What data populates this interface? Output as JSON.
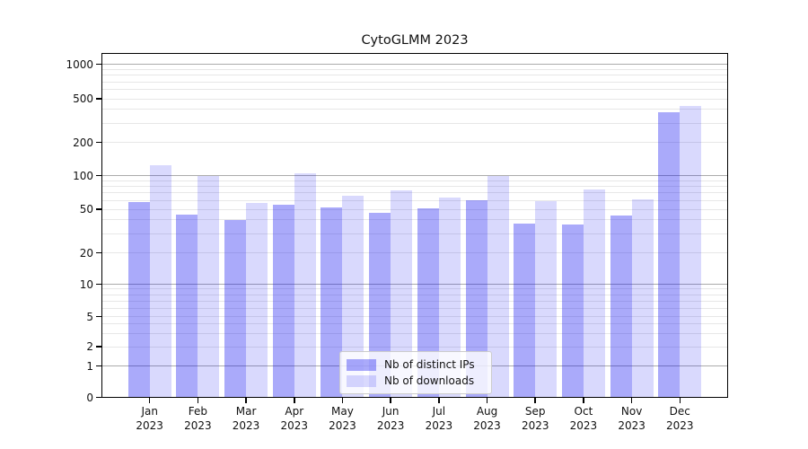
{
  "title": "CytoGLMM 2023",
  "legend": {
    "items": [
      {
        "label": "Nb of distinct IPs",
        "color": "rgba(0,0,240,0.335)"
      },
      {
        "label": "Nb of downloads",
        "color": "rgba(0,0,240,0.15)"
      }
    ]
  },
  "y_axis": {
    "scale": "symlog",
    "ticks": [
      {
        "value": 0,
        "label": "0"
      },
      {
        "value": 1,
        "label": "1"
      },
      {
        "value": 2,
        "label": "2"
      },
      {
        "value": 5,
        "label": "5"
      },
      {
        "value": 10,
        "label": "10"
      },
      {
        "value": 20,
        "label": "20"
      },
      {
        "value": 50,
        "label": "50"
      },
      {
        "value": 100,
        "label": "100"
      },
      {
        "value": 200,
        "label": "200"
      },
      {
        "value": 500,
        "label": "500"
      },
      {
        "value": 1000,
        "label": "1000"
      }
    ]
  },
  "x_axis": {
    "months": [
      "Jan",
      "Feb",
      "Mar",
      "Apr",
      "May",
      "Jun",
      "Jul",
      "Aug",
      "Sep",
      "Oct",
      "Nov",
      "Dec"
    ],
    "year": "2023"
  },
  "colors": {
    "bar_ips": "rgba(0,0,240,0.335)",
    "bar_downloads": "rgba(0,0,240,0.15)",
    "bar_ips_flat": "#aaaaf8",
    "bar_downloads_flat": "#d9d9f8",
    "major_grid": "#ababab",
    "minor_grid": "#e7e7e7",
    "axis": "#000000",
    "background": "#ffffff"
  },
  "chart_data": {
    "type": "bar",
    "title": "CytoGLMM 2023",
    "categories": [
      "Jan 2023",
      "Feb 2023",
      "Mar 2023",
      "Apr 2023",
      "May 2023",
      "Jun 2023",
      "Jul 2023",
      "Aug 2023",
      "Sep 2023",
      "Oct 2023",
      "Nov 2023",
      "Dec 2023"
    ],
    "series": [
      {
        "name": "Nb of distinct IPs",
        "color": "rgba(0,0,240,0.335)",
        "values": [
          58,
          45,
          40,
          55,
          52,
          46,
          51,
          60,
          37,
          36,
          44,
          380
        ]
      },
      {
        "name": "Nb of downloads",
        "color": "rgba(0,0,240,0.15)",
        "values": [
          125,
          100,
          57,
          105,
          66,
          74,
          64,
          100,
          59,
          75,
          61,
          430
        ]
      }
    ],
    "xlabel": "",
    "ylabel": "",
    "yscale": "symlog",
    "ylim": [
      0,
      1400
    ],
    "yticks": [
      0,
      1,
      2,
      5,
      10,
      20,
      50,
      100,
      200,
      500,
      1000
    ],
    "minor_gridlines": [
      2,
      3,
      4,
      5,
      6,
      7,
      8,
      9,
      20,
      30,
      40,
      50,
      60,
      70,
      80,
      90,
      200,
      300,
      400,
      500,
      600,
      700,
      800,
      900
    ],
    "major_gridlines": [
      1,
      10,
      100,
      1000
    ],
    "grid": "horizontal",
    "legend_position": "lower center"
  }
}
